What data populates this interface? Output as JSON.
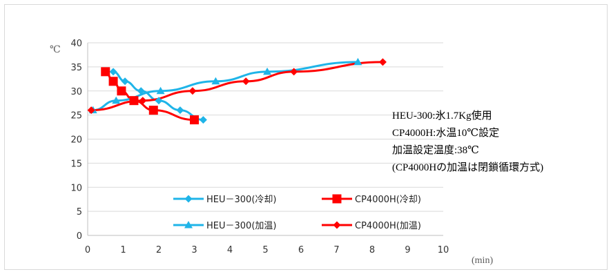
{
  "chart_data": {
    "type": "line",
    "ylabel": "℃",
    "xlabel": "(min)",
    "xlim": [
      0,
      10
    ],
    "ylim": [
      0,
      40
    ],
    "x_ticks": [
      0,
      1,
      2,
      3,
      4,
      5,
      6,
      7,
      8,
      9,
      10
    ],
    "y_ticks": [
      0,
      5,
      10,
      15,
      20,
      25,
      30,
      35,
      40
    ],
    "grid": "horizontal",
    "legend_position": "bottom-center",
    "series": [
      {
        "name": "HEU－300(冷却)",
        "color": "#1fb4e8",
        "marker": "diamond",
        "points": [
          [
            0.72,
            34
          ],
          [
            1.05,
            32
          ],
          [
            1.5,
            30
          ],
          [
            2.0,
            28
          ],
          [
            2.6,
            26
          ],
          [
            3.25,
            24
          ]
        ]
      },
      {
        "name": "CP4000H(冷却)",
        "color": "#ff0000",
        "marker": "square",
        "points": [
          [
            0.5,
            34
          ],
          [
            0.72,
            32
          ],
          [
            0.95,
            30
          ],
          [
            1.3,
            28
          ],
          [
            1.85,
            26
          ],
          [
            3.0,
            24
          ]
        ]
      },
      {
        "name": "HEU－300(加温)",
        "color": "#1fb4e8",
        "marker": "triangle",
        "points": [
          [
            0.15,
            26
          ],
          [
            0.8,
            28
          ],
          [
            2.05,
            30
          ],
          [
            3.6,
            32
          ],
          [
            5.05,
            34
          ],
          [
            7.6,
            36
          ]
        ]
      },
      {
        "name": "CP4000H(加温)",
        "color": "#ff0000",
        "marker": "diamond",
        "points": [
          [
            0.1,
            26
          ],
          [
            1.55,
            28
          ],
          [
            2.95,
            30
          ],
          [
            4.45,
            32
          ],
          [
            5.8,
            34
          ],
          [
            8.3,
            36
          ]
        ]
      }
    ],
    "annotations": [
      "HEU-300:氷1.7Kg使用",
      "CP4000H:水温10℃設定",
      "加温設定温度:38℃",
      "(CP4000Hの加温は閉鎖循環方式)"
    ]
  }
}
